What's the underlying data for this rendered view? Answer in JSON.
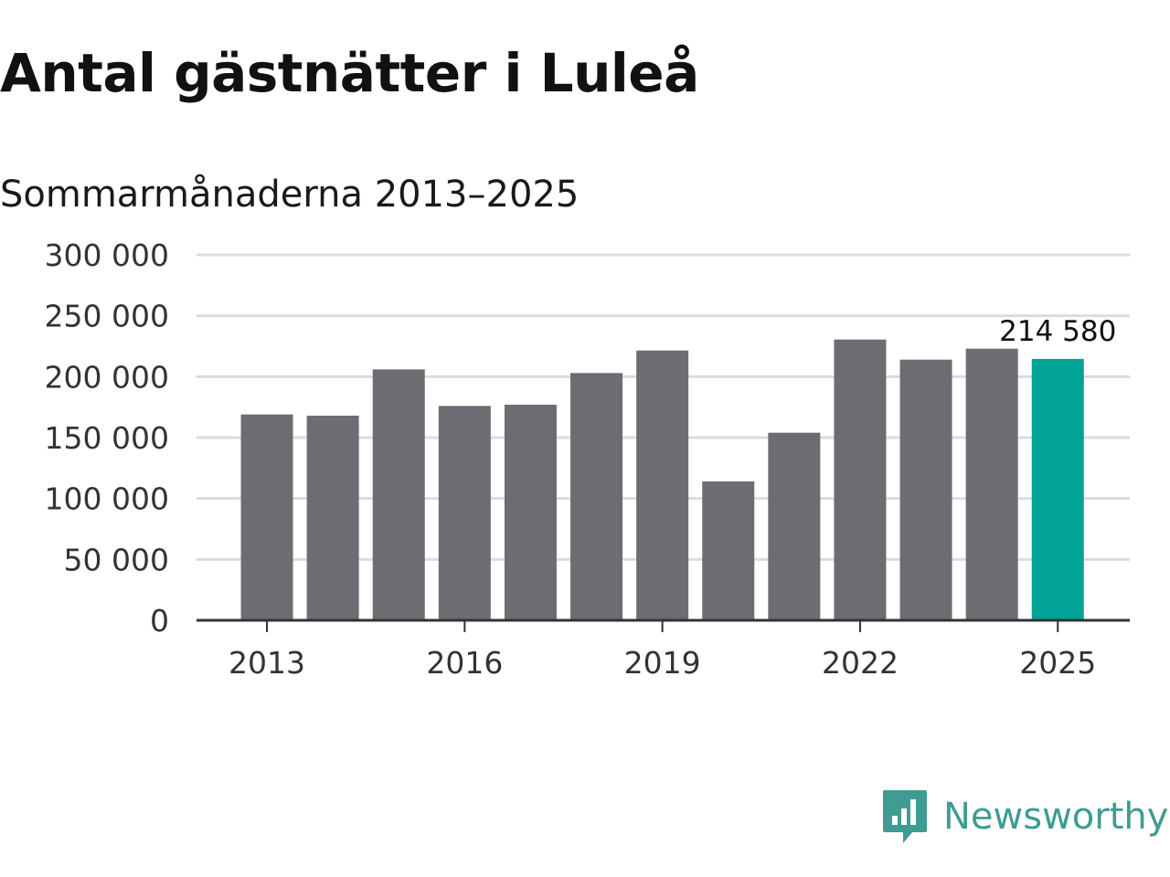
{
  "title": "Antal gästnätter i Luleå",
  "subtitle": "Sommarmånaderna 2013–2025",
  "colors": {
    "bar": "#6d6c72",
    "highlight": "#00a396",
    "grid": "#dcdcdc",
    "axis": "#333333",
    "brand": "#3e9c92"
  },
  "brand": {
    "name": "Newsworthy",
    "icon": "newsworthy-logo-icon"
  },
  "chart_data": {
    "type": "bar",
    "title": "Antal gästnätter i Luleå",
    "subtitle": "Sommarmånaderna 2013–2025",
    "categories": [
      "2013",
      "2014",
      "2015",
      "2016",
      "2017",
      "2018",
      "2019",
      "2020",
      "2021",
      "2022",
      "2023",
      "2024",
      "2025"
    ],
    "values": [
      169000,
      168000,
      206000,
      176000,
      177000,
      203000,
      221500,
      114000,
      154000,
      230500,
      214000,
      223000,
      214580
    ],
    "highlight_index": 12,
    "highlight_label": "214 580",
    "x_tick_labels": [
      "2013",
      "2016",
      "2019",
      "2022",
      "2025"
    ],
    "y_tick_values": [
      0,
      50000,
      100000,
      150000,
      200000,
      250000,
      300000
    ],
    "y_tick_labels": [
      "0",
      "50 000",
      "100 000",
      "150 000",
      "200 000",
      "250 000",
      "300 000"
    ],
    "xlabel": "",
    "ylabel": "",
    "ylim": [
      0,
      300000
    ],
    "grid": true,
    "legend": "none"
  }
}
